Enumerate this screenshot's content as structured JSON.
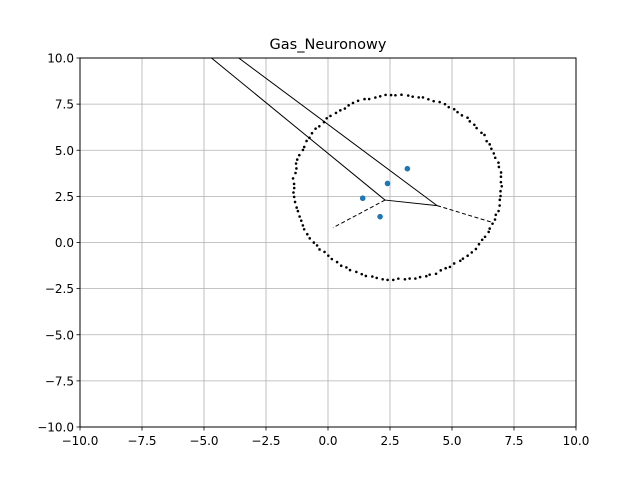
{
  "chart_data": {
    "type": "scatter",
    "title": "Gas_Neuronowy",
    "xlabel": "",
    "ylabel": "",
    "xlim": [
      -10,
      10
    ],
    "ylim": [
      -10,
      10
    ],
    "grid": true,
    "x_ticks": [
      -10,
      -7.5,
      -5,
      -2.5,
      0,
      2.5,
      5,
      7.5,
      10
    ],
    "y_ticks": [
      -10,
      -7.5,
      -5,
      -2.5,
      0,
      2.5,
      5,
      7.5,
      10
    ],
    "x_tick_labels": [
      "−10.0",
      "−7.5",
      "−5.0",
      "−2.5",
      "0.0",
      "2.5",
      "5.0",
      "7.5",
      "10.0"
    ],
    "y_tick_labels": [
      "−10.0",
      "−7.5",
      "−5.0",
      "−2.5",
      "0.0",
      "2.5",
      "5.0",
      "7.5",
      "10.0"
    ],
    "ellipse_points": {
      "description_center": [
        2.8,
        3.0
      ],
      "center": [
        2.8,
        3.0
      ],
      "rx": 4.2,
      "ry": 5.0,
      "color": "#000000",
      "count": 120
    },
    "neurons": {
      "color": "#1f77b4",
      "points": [
        [
          1.4,
          2.4
        ],
        [
          2.4,
          3.2
        ],
        [
          3.2,
          4.0
        ],
        [
          2.1,
          1.4
        ]
      ]
    },
    "solid_lines": [
      [
        [
          -4.7,
          10.0
        ],
        [
          2.3,
          2.3
        ]
      ],
      [
        [
          -3.6,
          10.0
        ],
        [
          4.4,
          2.0
        ]
      ],
      [
        [
          2.3,
          2.3
        ],
        [
          4.4,
          2.0
        ]
      ]
    ],
    "dashed_lines": [
      [
        [
          2.3,
          2.3
        ],
        [
          0.2,
          0.8
        ]
      ],
      [
        [
          4.4,
          2.0
        ],
        [
          6.6,
          1.1
        ]
      ]
    ]
  }
}
